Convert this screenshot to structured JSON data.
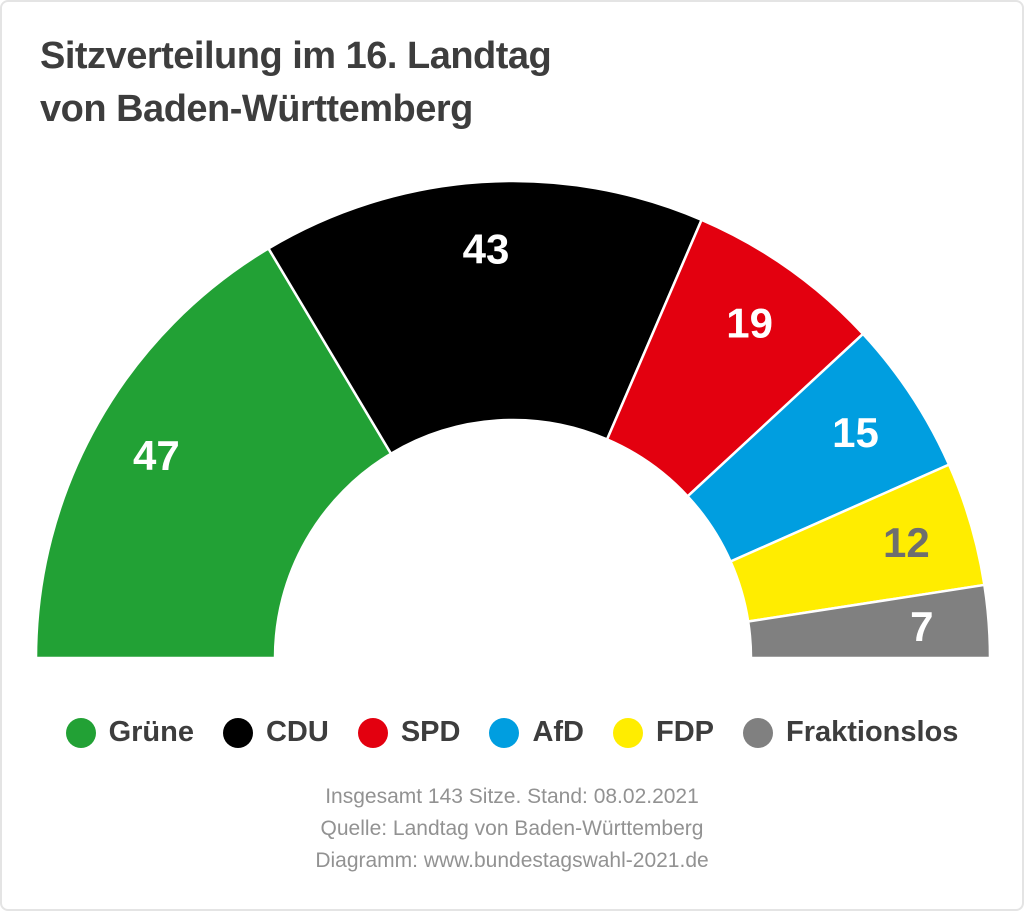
{
  "title": {
    "line1": "Sitzverteilung im 16. Landtag",
    "line2": "von Baden-Württemberg"
  },
  "chart_data": {
    "type": "pie",
    "variant": "semicircle-donut",
    "title": "Sitzverteilung im 16. Landtag von Baden-Württemberg",
    "total_seats": 143,
    "start_angle_deg": 180,
    "end_angle_deg": 0,
    "legend_position": "bottom",
    "categories": [
      "Grüne",
      "CDU",
      "SPD",
      "AfD",
      "FDP",
      "Fraktionslos"
    ],
    "values": [
      47,
      43,
      19,
      15,
      12,
      7
    ],
    "series": [
      {
        "name": "Grüne",
        "value": 47,
        "color": "#22A135",
        "label_color": "#FFFFFF"
      },
      {
        "name": "CDU",
        "value": 43,
        "color": "#000000",
        "label_color": "#FFFFFF"
      },
      {
        "name": "SPD",
        "value": 19,
        "color": "#E3000F",
        "label_color": "#FFFFFF"
      },
      {
        "name": "AfD",
        "value": 15,
        "color": "#009EE0",
        "label_color": "#FFFFFF"
      },
      {
        "name": "FDP",
        "value": 12,
        "color": "#FFED00",
        "label_color": "#6E6E6E"
      },
      {
        "name": "Fraktionslos",
        "value": 7,
        "color": "#808080",
        "label_color": "#FFFFFF"
      }
    ]
  },
  "footer": {
    "line1": "Insgesamt 143 Sitze. Stand: 08.02.2021",
    "line2": "Quelle: Landtag von Baden-Württemberg",
    "line3": "Diagramm: www.bundestagswahl-2021.de"
  }
}
